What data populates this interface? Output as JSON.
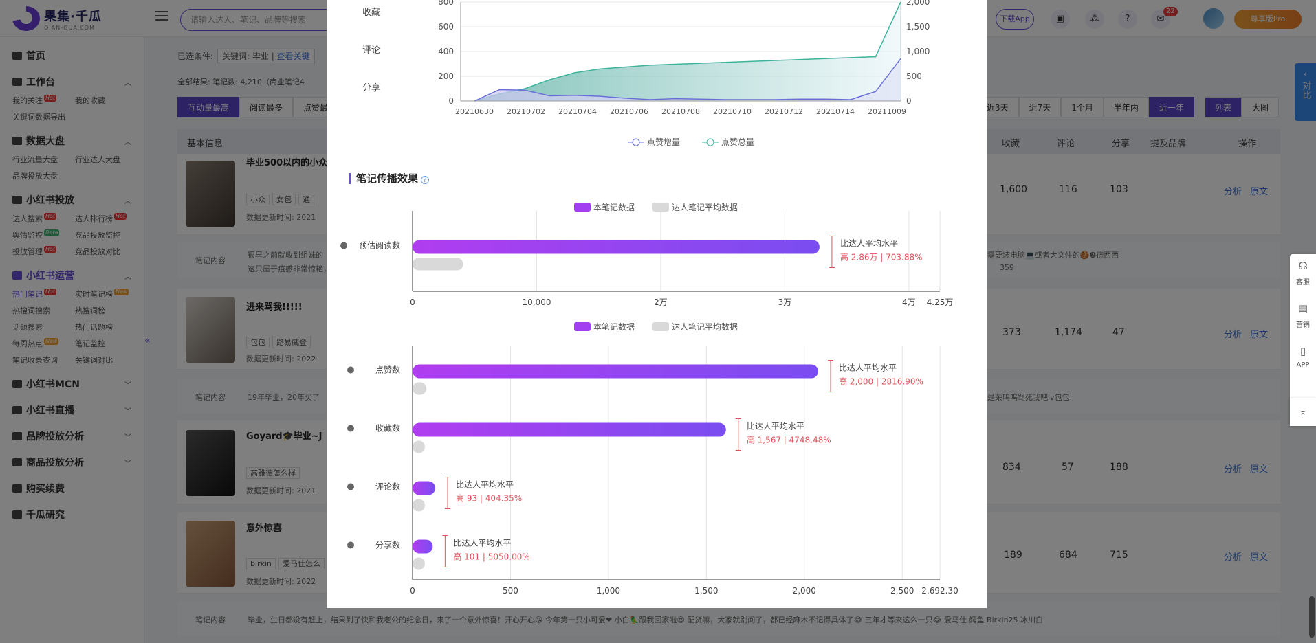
{
  "brand": {
    "cn": "果集·千瓜",
    "en": "QIAN-GUA.COM"
  },
  "search": {
    "placeholder": "请输入达人、笔记、品牌等搜索"
  },
  "top": {
    "download": "下载App",
    "msg_count": "22",
    "pro": "尊享版Pro"
  },
  "sidebar": {
    "home": "首页",
    "workbench": {
      "title": "工作台",
      "items": [
        "我的关注",
        "我的收藏",
        "关键词数据导出"
      ]
    },
    "bigdata": {
      "title": "数据大盘",
      "items": [
        "行业流量大盘",
        "行业达人大盘",
        "品牌投放大盘"
      ]
    },
    "xhs_ad": {
      "title": "小红书投放",
      "items": [
        "达人搜索",
        "达人排行榜",
        "舆情监控",
        "竞品投放监控",
        "投放管理",
        "竞品投放对比"
      ]
    },
    "xhs_ops": {
      "title": "小红书运营",
      "items": [
        "热门笔记",
        "实时笔记榜",
        "热搜词搜索",
        "热搜词榜",
        "话题搜索",
        "热门话题榜",
        "每周热点",
        "笔记监控",
        "笔记收录查询",
        "关键词对比"
      ]
    },
    "mcn": "小红书MCN",
    "live": "小红书直播",
    "brand_ad": "品牌投放分析",
    "goods_ad": "商品投放分析",
    "renew": "购买续费",
    "research": "千瓜研究",
    "tags": {
      "hot": "Hot",
      "new": "New",
      "beta": "Beta"
    }
  },
  "filter": {
    "label": "已选条件:",
    "keyword": "关键词: 毕业 | ",
    "view": "查看关键"
  },
  "total": "全部结果: 笔记数: 4,210（商业笔记4",
  "sort_tabs": [
    "互动量最高",
    "阅读最多",
    "点赞最"
  ],
  "range_tabs": [
    "近3天",
    "近7天",
    "1个月",
    "半年内",
    "近一年"
  ],
  "view_tabs": [
    "列表",
    "大图"
  ],
  "thead": {
    "basic": "基本信息",
    "fav": "收藏",
    "comment": "评论",
    "share": "分享",
    "brand": "提及品牌",
    "op": "操作"
  },
  "rows": [
    {
      "title": "毕业500以内的小众",
      "tags": [
        "小众",
        "女包",
        "通"
      ],
      "upd": "数据更新时间: 2021",
      "fav": "1,600",
      "comment": "116",
      "share": "103"
    },
    {
      "title": "进来骂我!!!!!",
      "tags": [
        "包包",
        "路易威登"
      ],
      "upd": "数据更新时间: 2022",
      "fav": "373",
      "comment": "1,174",
      "share": "47"
    },
    {
      "title": "Goyard🎓毕业~J",
      "tags": [
        "高雅德怎么样"
      ],
      "upd": "数据更新时间: 2021",
      "fav": "834",
      "comment": "57",
      "share": "188"
    },
    {
      "title": "意外惊喜",
      "tags": [
        "birkin",
        "爱马仕怎么"
      ],
      "upd": "数据更新时间: 2022",
      "fav": "189",
      "comment": "684",
      "share": "715"
    }
  ],
  "row_ops": {
    "analyze": "分析",
    "orig": "原文"
  },
  "contents": [
    {
      "label": "笔记内容",
      "text": "很早之前就收到组妹的",
      "tail": "需要装电脑💻或者大文件的🍪❷德西西",
      "tail2": "这只屋于疫惑非常惊艳，[赞R]设计简",
      "count": "359"
    },
    {
      "label": "笔记内容",
      "text": "19年毕业，20年买了",
      "tail": "是荣呜呜骂死我吧lv包包"
    },
    {
      "label": "笔记内容",
      "text": "毕业，生日都没有赶上，结果到了快和我老公的纪念日，来了一个意外惊喜！开心开心😘 今年第一只小可爱❤ 小白🦜跟我回家啦😍 配货嘛，大家就别问了，都已经麻木不记得具体了😂 三年才等来这么一只😂 爱马仕 鳄鱼 Birkin25 冰川白"
    }
  ],
  "chart_top": {
    "y_labels_left": [
      "收藏",
      "评论",
      "分享"
    ],
    "x_ticks": [
      "20210630",
      "20210702",
      "20210704",
      "20210706",
      "20210708",
      "20210710",
      "20210712",
      "20210714",
      "20211009"
    ],
    "y_left": [
      "800",
      "600",
      "400",
      "200",
      "0"
    ],
    "y_right": [
      "2,000",
      "1,500",
      "1,000",
      "500",
      "0"
    ],
    "legend": [
      "点赞增量",
      "点赞总量"
    ]
  },
  "section_title": "笔记传播效果",
  "legend_compare": [
    "本笔记数据",
    "达人笔记平均数据"
  ],
  "chart_data": [
    {
      "type": "line",
      "series": [
        {
          "name": "点赞增量",
          "values": [
            0,
            240,
            230,
            110,
            120,
            100,
            60,
            30,
            50,
            40,
            30,
            30,
            30,
            40,
            40,
            30,
            200,
            900
          ]
        },
        {
          "name": "点赞总量",
          "values": [
            0,
            150,
            260,
            450,
            600,
            680,
            720,
            760,
            780,
            800,
            820,
            840,
            860,
            880,
            900,
            920,
            940,
            2100
          ]
        }
      ],
      "y_left_range": [
        0,
        800
      ],
      "y_right_range": [
        0,
        2100
      ]
    },
    {
      "type": "bar",
      "categories": [
        "预估阅读数"
      ],
      "series": [
        {
          "name": "本笔记数据",
          "values": [
            32800
          ]
        },
        {
          "name": "达人笔记平均数据",
          "values": [
            4080
          ]
        }
      ],
      "x_ticks": [
        "0",
        "10,000",
        "2万",
        "3万",
        "4万",
        "4.25万"
      ],
      "xlim": [
        0,
        42500
      ],
      "note_label": "比达人平均水平",
      "notes": [
        "高 2.86万 | 703.88%"
      ]
    },
    {
      "type": "bar",
      "categories": [
        "点赞数",
        "收藏数",
        "评论数",
        "分享数"
      ],
      "series": [
        {
          "name": "本笔记数据",
          "values": [
            2071,
            1600,
            116,
            103
          ]
        },
        {
          "name": "达人笔记平均数据",
          "values": [
            71,
            33,
            23,
            2
          ]
        }
      ],
      "x_ticks": [
        "0",
        "500",
        "1,000",
        "1,500",
        "2,000",
        "2,500",
        "2,692.30"
      ],
      "xlim": [
        0,
        2692.3
      ],
      "note_label": "比达人平均水平",
      "notes": [
        "高 2,000 | 2816.90%",
        "高 1,567 | 4748.48%",
        "高 93 | 404.35%",
        "高 101 | 5050.00%"
      ]
    }
  ],
  "right_tab": {
    "compare": "对比",
    "service": "客服",
    "marketing": "营销",
    "app": "APP"
  },
  "colors": {
    "accent": "#6a4fd8",
    "bar_main": "#a23ff0",
    "bar_avg": "#d9d9d9",
    "note_red": "#e0505a",
    "line1": "#6a6fd8",
    "line2": "#3cb39a"
  }
}
